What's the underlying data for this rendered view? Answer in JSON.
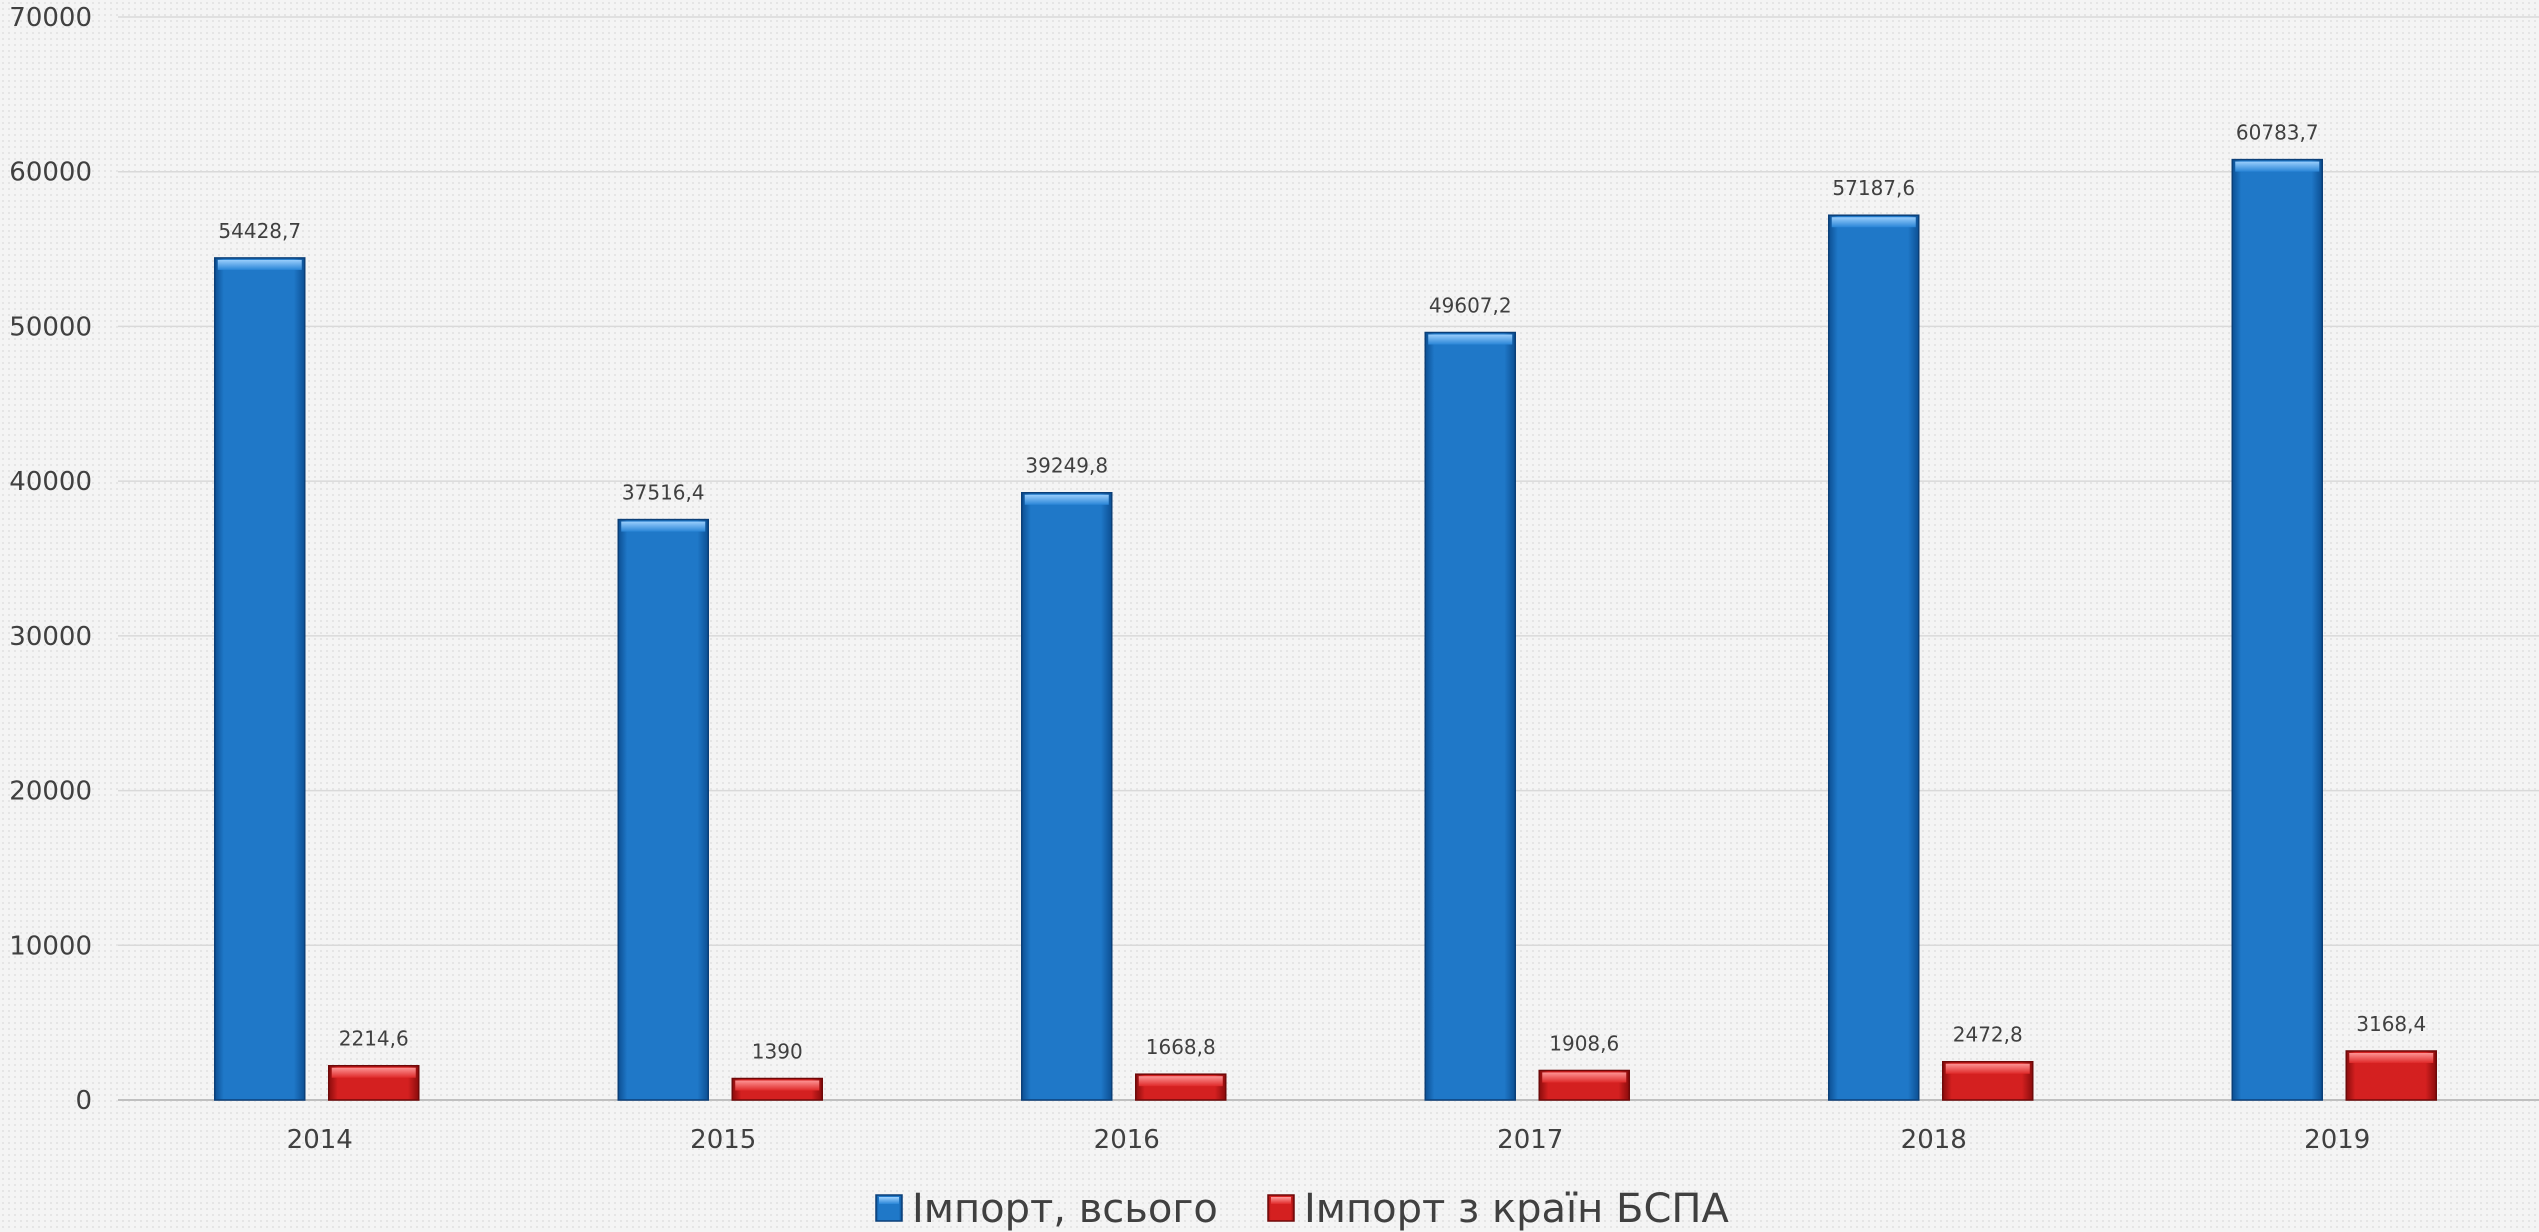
{
  "chart_data": {
    "type": "bar",
    "title": "",
    "xlabel": "",
    "ylabel": "",
    "categories": [
      "2014",
      "2015",
      "2016",
      "2017",
      "2018",
      "2019"
    ],
    "series": [
      {
        "name": "Імпорт, всього",
        "color": "#1f78c8",
        "values": [
          54428.7,
          37516.4,
          39249.8,
          49607.2,
          57187.6,
          60783.7
        ],
        "labels": [
          "54428,7",
          "37516,4",
          "39249,8",
          "49607,2",
          "57187,6",
          "60783,7"
        ]
      },
      {
        "name": "Імпорт з країн БСПА",
        "color": "#d42020",
        "values": [
          2214.6,
          1390,
          1668.8,
          1908.6,
          2472.8,
          3168.4
        ],
        "labels": [
          "2214,6",
          "1390",
          "1668,8",
          "1908,6",
          "2472,8",
          "3168,4"
        ]
      }
    ],
    "ylim": [
      0,
      70000
    ],
    "yticks": [
      0,
      10000,
      20000,
      30000,
      40000,
      50000,
      60000,
      70000
    ],
    "grid": true,
    "legend": "bottom-center"
  }
}
